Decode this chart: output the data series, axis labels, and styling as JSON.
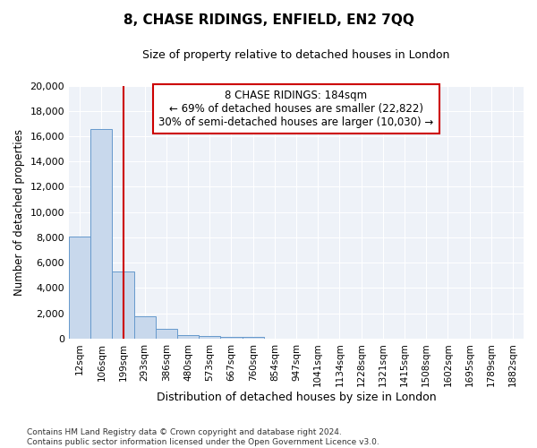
{
  "title": "8, CHASE RIDINGS, ENFIELD, EN2 7QQ",
  "subtitle": "Size of property relative to detached houses in London",
  "xlabel": "Distribution of detached houses by size in London",
  "ylabel": "Number of detached properties",
  "bar_color": "#c8d8ec",
  "bar_edge_color": "#6699cc",
  "vline_color": "#cc0000",
  "vline_x": 2.0,
  "annotation_line1": "8 CHASE RIDINGS: 184sqm",
  "annotation_line2": "← 69% of detached houses are smaller (22,822)",
  "annotation_line3": "30% of semi-detached houses are larger (10,030) →",
  "annotation_box_color": "#cc0000",
  "categories": [
    "12sqm",
    "106sqm",
    "199sqm",
    "293sqm",
    "386sqm",
    "480sqm",
    "573sqm",
    "667sqm",
    "760sqm",
    "854sqm",
    "947sqm",
    "1041sqm",
    "1134sqm",
    "1228sqm",
    "1321sqm",
    "1415sqm",
    "1508sqm",
    "1602sqm",
    "1695sqm",
    "1789sqm",
    "1882sqm"
  ],
  "values": [
    8050,
    16600,
    5300,
    1750,
    750,
    300,
    200,
    150,
    100,
    0,
    0,
    0,
    0,
    0,
    0,
    0,
    0,
    0,
    0,
    0,
    0
  ],
  "ylim": [
    0,
    20000
  ],
  "yticks": [
    0,
    2000,
    4000,
    6000,
    8000,
    10000,
    12000,
    14000,
    16000,
    18000,
    20000
  ],
  "footer_text": "Contains HM Land Registry data © Crown copyright and database right 2024.\nContains public sector information licensed under the Open Government Licence v3.0.",
  "background_color": "#ffffff",
  "plot_background_color": "#eef2f8",
  "grid_color": "#ffffff"
}
